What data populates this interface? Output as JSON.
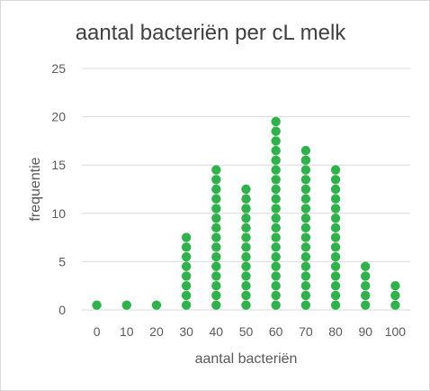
{
  "chart_data": {
    "type": "scatter",
    "title": "aantal bacteriën per cL melk",
    "xlabel": "aantal bacteriën",
    "ylabel": "frequentie",
    "x_ticks": [
      "0",
      "10",
      "20",
      "30",
      "40",
      "50",
      "60",
      "70",
      "80",
      "90",
      "100"
    ],
    "y_ticks": [
      "0",
      "5",
      "10",
      "15",
      "20",
      "25"
    ],
    "ylim": [
      0,
      25
    ],
    "grid": true,
    "marker_color": "#2db34a",
    "categories": [
      0,
      10,
      20,
      30,
      40,
      50,
      60,
      70,
      80,
      90,
      100
    ],
    "frequencies": [
      1,
      1,
      1,
      8,
      15,
      13,
      20,
      17,
      15,
      5,
      3
    ]
  }
}
